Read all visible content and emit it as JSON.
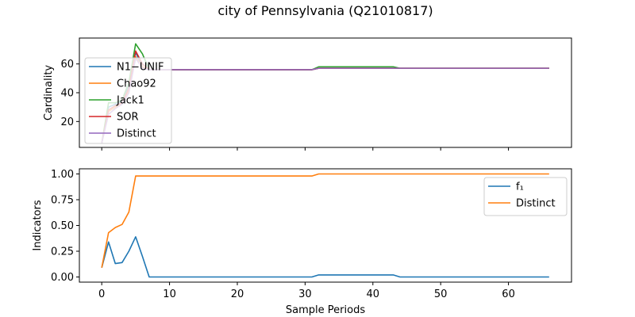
{
  "chart_data": [
    {
      "type": "line",
      "title": "city of Pennsylvania (Q21010817)",
      "xlabel": "",
      "ylabel": "Cardinality",
      "xlim": [
        -3.3,
        69.3
      ],
      "ylim": [
        2,
        78
      ],
      "yticks": [
        20,
        40,
        60
      ],
      "xticks": [
        0,
        10,
        20,
        30,
        40,
        50,
        60
      ],
      "show_x_tick_labels": false,
      "legend_position": "upper-left",
      "series": [
        {
          "name": "N1−UNIF",
          "color": "#1f77b4",
          "points": [
            [
              0,
              5
            ],
            [
              1,
              30
            ],
            [
              2,
              32
            ],
            [
              3,
              34
            ],
            [
              4,
              45
            ],
            [
              5,
              68
            ],
            [
              6,
              58
            ],
            [
              7,
              56
            ],
            [
              10,
              56
            ],
            [
              20,
              56
            ],
            [
              31,
              56
            ],
            [
              32,
              57
            ],
            [
              40,
              57
            ],
            [
              44,
              57
            ],
            [
              50,
              57
            ],
            [
              60,
              57
            ],
            [
              66,
              57
            ]
          ]
        },
        {
          "name": "Chao92",
          "color": "#ff7f0e",
          "points": [
            [
              0,
              5
            ],
            [
              1,
              27
            ],
            [
              2,
              30
            ],
            [
              3,
              33
            ],
            [
              4,
              42
            ],
            [
              5,
              65
            ],
            [
              6,
              58
            ],
            [
              7,
              56
            ],
            [
              10,
              56
            ],
            [
              20,
              56
            ],
            [
              31,
              56
            ],
            [
              32,
              57
            ],
            [
              40,
              57
            ],
            [
              44,
              57
            ],
            [
              50,
              57
            ],
            [
              60,
              57
            ],
            [
              66,
              57
            ]
          ]
        },
        {
          "name": "Jack1",
          "color": "#2ca02c",
          "points": [
            [
              0,
              5
            ],
            [
              1,
              33
            ],
            [
              2,
              33
            ],
            [
              3,
              35
            ],
            [
              4,
              47
            ],
            [
              5,
              74
            ],
            [
              6,
              67
            ],
            [
              7,
              56
            ],
            [
              10,
              56
            ],
            [
              20,
              56
            ],
            [
              31,
              56
            ],
            [
              32,
              58
            ],
            [
              40,
              58
            ],
            [
              43,
              58
            ],
            [
              44,
              57
            ],
            [
              50,
              57
            ],
            [
              60,
              57
            ],
            [
              66,
              57
            ]
          ]
        },
        {
          "name": "SOR",
          "color": "#d62728",
          "points": [
            [
              0,
              5
            ],
            [
              1,
              28
            ],
            [
              2,
              31
            ],
            [
              3,
              33
            ],
            [
              4,
              43
            ],
            [
              5,
              69
            ],
            [
              6,
              60
            ],
            [
              7,
              56
            ],
            [
              10,
              56
            ],
            [
              20,
              56
            ],
            [
              31,
              56
            ],
            [
              32,
              57
            ],
            [
              40,
              57
            ],
            [
              44,
              57
            ],
            [
              50,
              57
            ],
            [
              60,
              57
            ],
            [
              66,
              57
            ]
          ]
        },
        {
          "name": "Distinct",
          "color": "#9467bd",
          "points": [
            [
              0,
              5
            ],
            [
              1,
              25
            ],
            [
              2,
              29
            ],
            [
              3,
              32
            ],
            [
              4,
              40
            ],
            [
              5,
              64
            ],
            [
              6,
              57
            ],
            [
              7,
              56
            ],
            [
              10,
              56
            ],
            [
              20,
              56
            ],
            [
              31,
              56
            ],
            [
              32,
              57
            ],
            [
              40,
              57
            ],
            [
              44,
              57
            ],
            [
              50,
              57
            ],
            [
              60,
              57
            ],
            [
              66,
              57
            ]
          ]
        }
      ]
    },
    {
      "type": "line",
      "title": "",
      "xlabel": "Sample Periods",
      "ylabel": "Indicators",
      "xlim": [
        -3.3,
        69.3
      ],
      "ylim": [
        -0.05,
        1.05
      ],
      "yticks": [
        0.0,
        0.25,
        0.5,
        0.75,
        1.0
      ],
      "ytick_labels": [
        "0.00",
        "0.25",
        "0.50",
        "0.75",
        "1.00"
      ],
      "xticks": [
        0,
        10,
        20,
        30,
        40,
        50,
        60
      ],
      "xtick_labels": [
        "0",
        "10",
        "20",
        "30",
        "40",
        "50",
        "60"
      ],
      "show_x_tick_labels": true,
      "legend_position": "upper-right",
      "series": [
        {
          "name": "f₁",
          "color": "#1f77b4",
          "points": [
            [
              0,
              0.09
            ],
            [
              1,
              0.34
            ],
            [
              2,
              0.13
            ],
            [
              3,
              0.14
            ],
            [
              4,
              0.25
            ],
            [
              5,
              0.39
            ],
            [
              6,
              0.2
            ],
            [
              7,
              0.0
            ],
            [
              10,
              0.0
            ],
            [
              20,
              0.0
            ],
            [
              31,
              0.0
            ],
            [
              32,
              0.02
            ],
            [
              40,
              0.02
            ],
            [
              43,
              0.02
            ],
            [
              44,
              0.0
            ],
            [
              50,
              0.0
            ],
            [
              60,
              0.0
            ],
            [
              66,
              0.0
            ]
          ]
        },
        {
          "name": "Distinct",
          "color": "#ff7f0e",
          "points": [
            [
              0,
              0.09
            ],
            [
              1,
              0.43
            ],
            [
              2,
              0.48
            ],
            [
              3,
              0.51
            ],
            [
              4,
              0.63
            ],
            [
              5,
              0.98
            ],
            [
              6,
              0.98
            ],
            [
              7,
              0.98
            ],
            [
              10,
              0.98
            ],
            [
              20,
              0.98
            ],
            [
              31,
              0.98
            ],
            [
              32,
              1.0
            ],
            [
              40,
              1.0
            ],
            [
              44,
              1.0
            ],
            [
              50,
              1.0
            ],
            [
              60,
              1.0
            ],
            [
              66,
              1.0
            ]
          ]
        }
      ]
    }
  ]
}
